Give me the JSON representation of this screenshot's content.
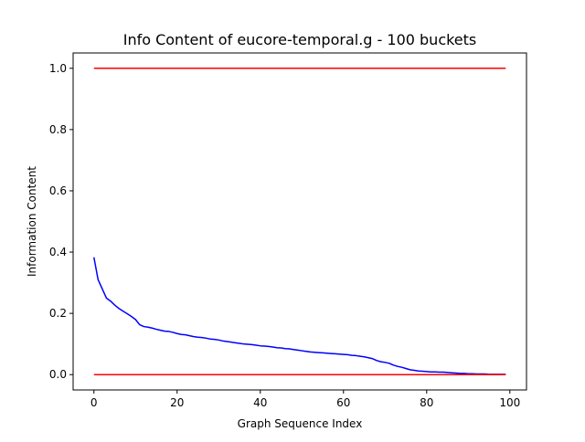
{
  "chart_data": {
    "type": "line",
    "title": "Info Content of eucore-temporal.g - 100 buckets",
    "xlabel": "Graph Sequence Index",
    "ylabel": "Information Content",
    "xlim": [
      -5,
      104
    ],
    "ylim": [
      -0.05,
      1.05
    ],
    "x_ticks": [
      0,
      20,
      40,
      60,
      80,
      100
    ],
    "x_tick_labels": [
      "0",
      "20",
      "40",
      "60",
      "80",
      "100"
    ],
    "y_ticks": [
      0.0,
      0.2,
      0.4,
      0.6,
      0.8,
      1.0
    ],
    "y_tick_labels": [
      "0.0",
      "0.2",
      "0.4",
      "0.6",
      "0.8",
      "1.0"
    ],
    "grid": false,
    "legend": "none",
    "series": [
      {
        "color": "#0000ff",
        "x": [
          0,
          1,
          2,
          3,
          4,
          5,
          6,
          7,
          8,
          9,
          10,
          11,
          12,
          13,
          14,
          15,
          16,
          17,
          18,
          19,
          20,
          21,
          22,
          23,
          24,
          25,
          26,
          27,
          28,
          29,
          30,
          31,
          32,
          33,
          34,
          35,
          36,
          37,
          38,
          39,
          40,
          41,
          42,
          43,
          44,
          45,
          46,
          47,
          48,
          49,
          50,
          51,
          52,
          53,
          54,
          55,
          56,
          57,
          58,
          59,
          60,
          61,
          62,
          63,
          64,
          65,
          66,
          67,
          68,
          69,
          70,
          71,
          72,
          73,
          74,
          75,
          76,
          77,
          78,
          79,
          80,
          81,
          82,
          83,
          84,
          85,
          86,
          87,
          88,
          89,
          90,
          91,
          92,
          93,
          94,
          95,
          96,
          97,
          98,
          99
        ],
        "values": [
          0.383,
          0.31,
          0.28,
          0.25,
          0.24,
          0.227,
          0.216,
          0.207,
          0.199,
          0.19,
          0.18,
          0.163,
          0.157,
          0.155,
          0.152,
          0.148,
          0.145,
          0.142,
          0.141,
          0.138,
          0.134,
          0.131,
          0.13,
          0.127,
          0.124,
          0.122,
          0.121,
          0.119,
          0.116,
          0.115,
          0.113,
          0.11,
          0.108,
          0.106,
          0.104,
          0.102,
          0.1,
          0.099,
          0.098,
          0.096,
          0.094,
          0.093,
          0.092,
          0.09,
          0.088,
          0.087,
          0.085,
          0.084,
          0.082,
          0.08,
          0.078,
          0.076,
          0.074,
          0.073,
          0.072,
          0.071,
          0.07,
          0.069,
          0.068,
          0.067,
          0.066,
          0.065,
          0.063,
          0.062,
          0.06,
          0.058,
          0.055,
          0.052,
          0.046,
          0.042,
          0.04,
          0.037,
          0.031,
          0.027,
          0.024,
          0.02,
          0.016,
          0.014,
          0.012,
          0.011,
          0.01,
          0.009,
          0.009,
          0.008,
          0.008,
          0.007,
          0.006,
          0.005,
          0.004,
          0.004,
          0.003,
          0.003,
          0.002,
          0.002,
          0.002,
          0.001,
          0.001,
          0.001,
          0.001,
          0.001
        ]
      },
      {
        "color": "#ff0000",
        "x": [
          0,
          99
        ],
        "values": [
          1.0,
          1.0
        ]
      },
      {
        "color": "#ff0000",
        "x": [
          0,
          99
        ],
        "values": [
          0.0,
          0.0
        ]
      }
    ]
  }
}
